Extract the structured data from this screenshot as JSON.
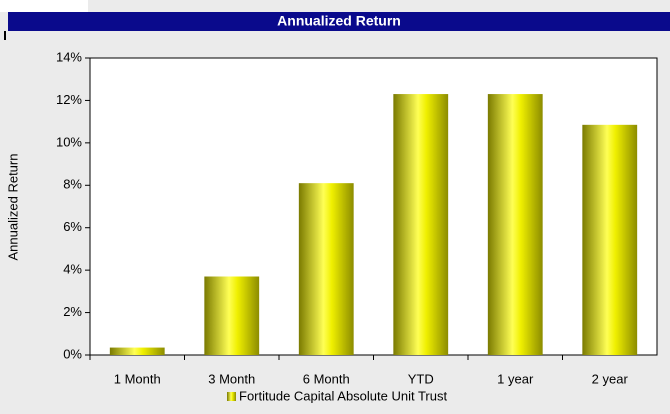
{
  "chart_data": {
    "type": "bar",
    "title": "Annualized Return",
    "ylabel": "Annualized Return",
    "categories": [
      "1 Month",
      "3 Month",
      "6 Month",
      "YTD",
      "1 year",
      "2 year"
    ],
    "series": [
      {
        "name": "Fortitude Capital Absolute Unit Trust",
        "color": "#e6e600",
        "values": [
          0.35,
          3.7,
          8.1,
          12.3,
          12.3,
          10.85
        ]
      }
    ],
    "ylim": [
      0,
      14
    ],
    "yticks": [
      {
        "value": 0,
        "label": "0%"
      },
      {
        "value": 2,
        "label": "2%"
      },
      {
        "value": 4,
        "label": "4%"
      },
      {
        "value": 6,
        "label": "6%"
      },
      {
        "value": 8,
        "label": "8%"
      },
      {
        "value": 10,
        "label": "10%"
      },
      {
        "value": 12,
        "label": "12%"
      },
      {
        "value": 14,
        "label": "14%"
      }
    ],
    "legend": "bottom"
  }
}
